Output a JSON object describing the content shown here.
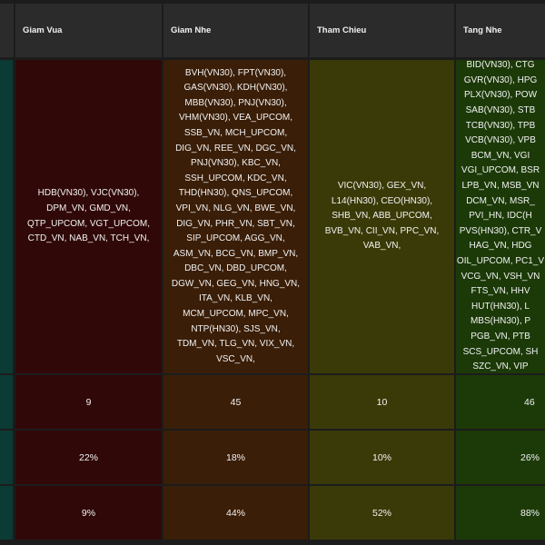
{
  "headers": {
    "giam_vua": "Giam Vua",
    "giam_nhe": "Giam Nhe",
    "tham_chieu": "Tham Chieu",
    "tang_nhe": "Tang Nhe"
  },
  "stocks": {
    "giam_vua": "HDB(VN30), VJC(VN30),\nDPM_VN, GMD_VN,\nQTP_UPCOM, VGT_UPCOM,\nCTD_VN, NAB_VN, TCH_VN,",
    "giam_nhe": "BVH(VN30), FPT(VN30),\nGAS(VN30), KDH(VN30),\nMBB(VN30), PNJ(VN30),\nVHM(VN30), VEA_UPCOM,\nSSB_VN, MCH_UPCOM,\nDIG_VN, REE_VN, DGC_VN,\nPNJ(VN30), KBC_VN,\nSSH_UPCOM, KDC_VN,\nTHD(HN30), QNS_UPCOM,\nVPI_VN, NLG_VN, BWE_VN,\nDIG_VN, PHR_VN, SBT_VN,\nSIP_UPCOM, AGG_VN,\nASM_VN, BCG_VN, BMP_VN,\nDBC_VN, DBD_UPCOM,\nDGW_VN, GEG_VN, HNG_VN,\nITA_VN, KLB_VN,\nMCM_UPCOM, MPC_VN,\nNTP(HN30), SJS_VN,\nTDM_VN, TLG_VN, VIX_VN,\nVSC_VN,",
    "tham_chieu": "VIC(VN30), GEX_VN,\nL14(HN30), CEO(HN30),\nSHB_VN, ABB_UPCOM,\nBVB_VN, CII_VN, PPC_VN,\nVAB_VN,",
    "tang_nhe": "BID(VN30), CTG\nGVR(VN30), HPG\nPLX(VN30), POW\nSAB(VN30), STB\nTCB(VN30), TPB\nVCB(VN30), VPB\nBCM_VN, VGI\nVGI_UPCOM, BSR\nLPB_VN, MSB_VN\nDCM_VN, MSR_\nPVI_HN, IDC(H\nPVS(HN30), CTR_V\nHAG_VN, HDG\nOIL_UPCOM, PC1_V\nVCG_VN, VSH_VN\nFTS_VN, HHV\nHUT(HN30), L\nMBS(HN30), P\nPGB_VN, PTB\nSCS_UPCOM, SH\nSZC_VN, VIP"
  },
  "counts": {
    "giam_vua": "9",
    "giam_nhe": "45",
    "tham_chieu": "10",
    "tang_nhe": "46"
  },
  "pct_row1": {
    "giam_vua": "22%",
    "giam_nhe": "18%",
    "tham_chieu": "10%",
    "tang_nhe": "26%"
  },
  "pct_row2": {
    "giam_vua": "9%",
    "giam_nhe": "44%",
    "tham_chieu": "52%",
    "tang_nhe": "88%"
  },
  "colors": {
    "giam_vua_bg": "#300808",
    "giam_nhe_bg": "#3a1e08",
    "tham_chieu_bg": "#3a3a08",
    "tang_nhe_bg": "#1c3a08",
    "header_bg": "#2b2b2b",
    "left_strip": "#0c3a35"
  }
}
